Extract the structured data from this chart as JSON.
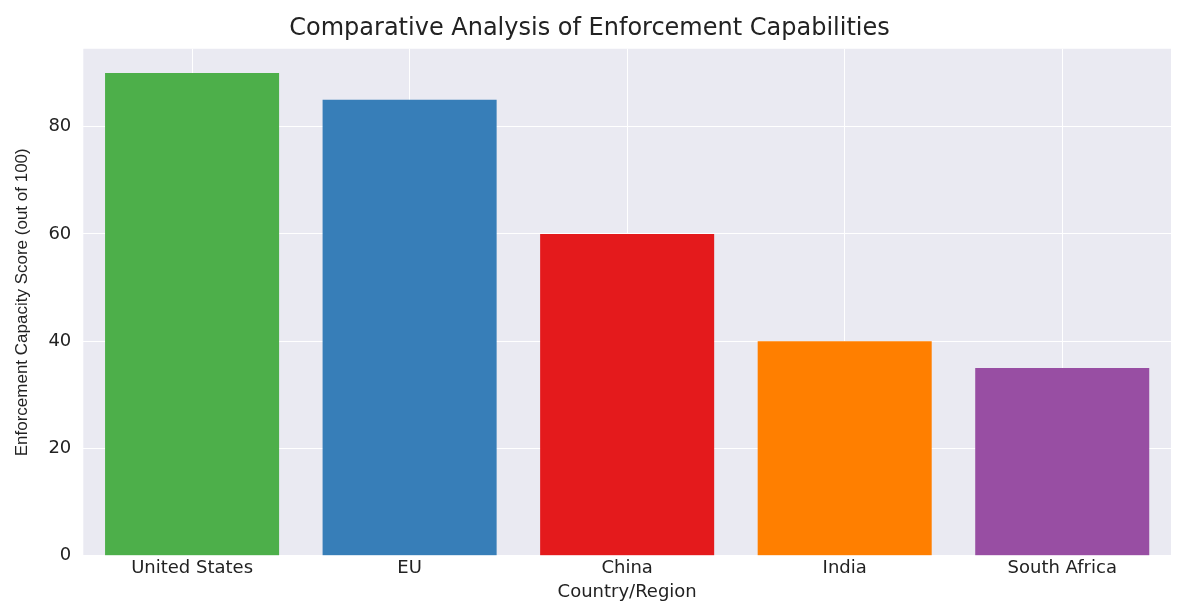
{
  "chart_data": {
    "type": "bar",
    "title": "Comparative Analysis of Enforcement Capabilities",
    "xlabel": "Country/Region",
    "ylabel": "Enforcement Capacity Score (out of 100)",
    "categories": [
      "United States",
      "EU",
      "China",
      "India",
      "South Africa"
    ],
    "values": [
      90,
      85,
      60,
      40,
      35
    ],
    "colors": [
      "#4daf4a",
      "#377eb8",
      "#e41a1c",
      "#ff7f00",
      "#984ea3"
    ],
    "ylim": [
      0,
      94.5
    ],
    "yticks": [
      0,
      20,
      40,
      60,
      80
    ],
    "grid": true,
    "legend": false
  }
}
